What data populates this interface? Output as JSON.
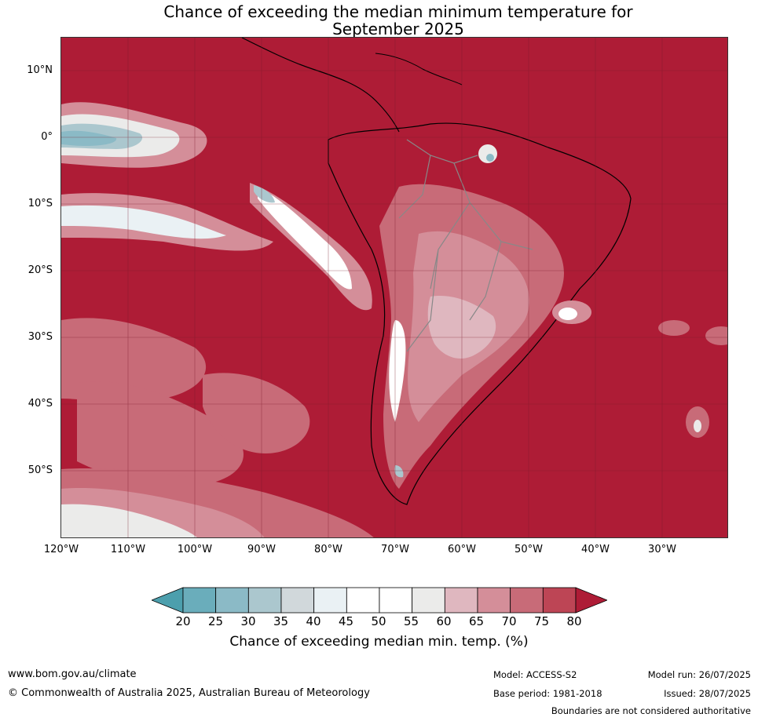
{
  "title_line1": "Chance of exceeding the median minimum temperature for",
  "title_line2": "September 2025",
  "lat_labels": [
    "10°N",
    "0°",
    "10°S",
    "20°S",
    "30°S",
    "40°S",
    "50°S"
  ],
  "lon_labels": [
    "120°W",
    "110°W",
    "100°W",
    "90°W",
    "80°W",
    "70°W",
    "60°W",
    "50°W",
    "40°W",
    "30°W"
  ],
  "colorbar": {
    "ticks": [
      "20",
      "25",
      "30",
      "35",
      "40",
      "45",
      "50",
      "55",
      "60",
      "65",
      "70",
      "75",
      "80"
    ],
    "colors": [
      "#4c9fad",
      "#6aadbb",
      "#8bbac6",
      "#abc7ce",
      "#d1d8db",
      "#eaf1f4",
      "#ffffff",
      "#ffffff",
      "#ebebea",
      "#dfb7bf",
      "#d48e99",
      "#c86b78",
      "#bd4555",
      "#ae1c36"
    ],
    "label": "Chance of exceeding median min. temp. (%)"
  },
  "footer": {
    "website": "www.bom.gov.au/climate",
    "copyright": "© Commonwealth of Australia 2025, Australian Bureau of Meteorology",
    "model": "Model: ACCESS-S2",
    "base_period": "Base period: 1981-2018",
    "model_run": "Model run: 26/07/2025",
    "issued": "Issued: 28/07/2025",
    "disclaimer": "Boundaries are not considered authoritative"
  }
}
